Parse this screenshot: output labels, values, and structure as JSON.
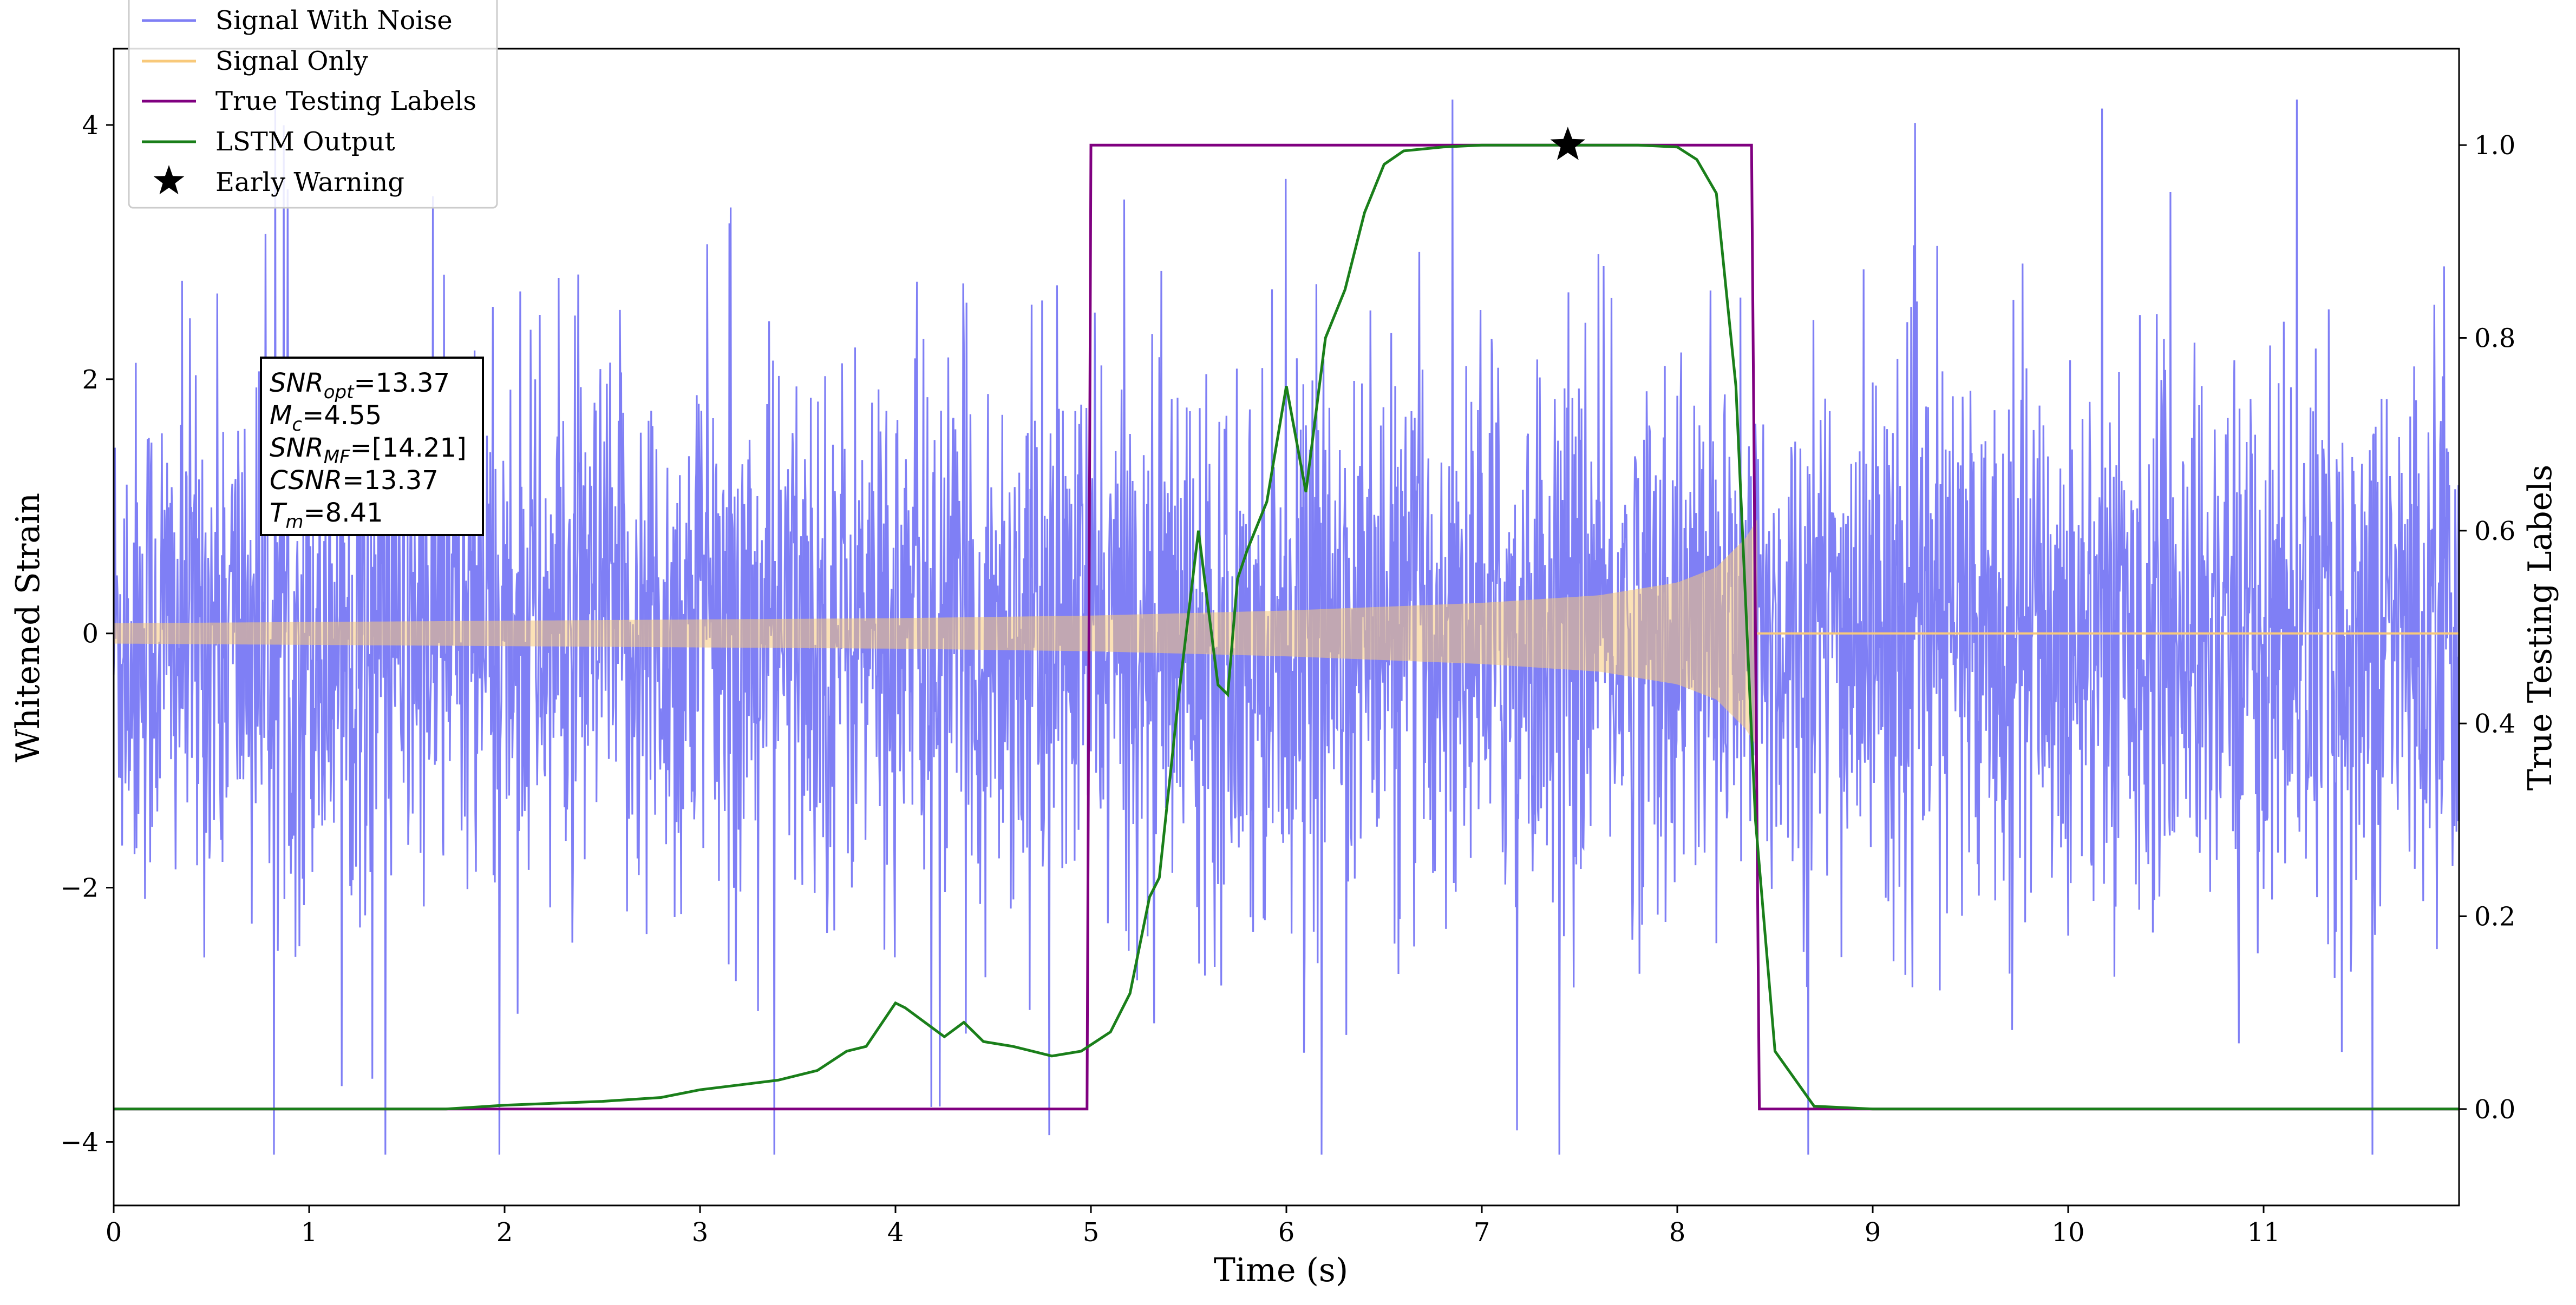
{
  "chart_data": {
    "type": "line",
    "xlabel": "Time (s)",
    "ylabel_left": "Whitened Strain",
    "ylabel_right": "True Testing Labels",
    "xlim": [
      0,
      12
    ],
    "ylim_left": [
      -4.5,
      4.6
    ],
    "ylim_right": [
      -0.1,
      1.1
    ],
    "x_ticks": [
      0,
      1,
      2,
      3,
      4,
      5,
      6,
      7,
      8,
      9,
      10,
      11
    ],
    "y_left_ticks": [
      -4,
      -2,
      0,
      2,
      4
    ],
    "y_left_tick_labels": [
      "−4",
      "−2",
      "0",
      "2",
      "4"
    ],
    "y_right_ticks": [
      0.0,
      0.2,
      0.4,
      0.6,
      0.8,
      1.0
    ],
    "y_right_tick_labels": [
      "0.0",
      "0.2",
      "0.4",
      "0.6",
      "0.8",
      "1.0"
    ],
    "grid": false,
    "legend_position": "top-left",
    "legend": [
      {
        "label": "Signal With Noise",
        "color": "#7f7ff5",
        "marker": "line"
      },
      {
        "label": "Signal Only",
        "color": "#f8c97a",
        "marker": "line"
      },
      {
        "label": "True Testing Labels",
        "color": "#800080",
        "marker": "line"
      },
      {
        "label": "LSTM Output",
        "color": "#1a7f1a",
        "marker": "line"
      },
      {
        "label": "Early Warning",
        "color": "#000000",
        "marker": "star"
      }
    ],
    "series": [
      {
        "name": "Signal With Noise",
        "axis": "left",
        "color": "#7f7ff5",
        "description": "whitened strain with Gaussian noise, spanning 0 to 12 s",
        "x_range": [
          0,
          12
        ],
        "typical_range": [
          -1.7,
          1.7
        ],
        "peak_max": 4.2,
        "peak_min": -4.1
      },
      {
        "name": "Signal Only",
        "axis": "left",
        "color": "#f8c97a",
        "description": "inspiral chirp with growing envelope, ends near t = 8.41",
        "envelope": {
          "t": [
            0,
            2,
            4,
            5,
            6,
            7,
            7.6,
            8.0,
            8.2,
            8.35,
            8.41
          ],
          "amp": [
            0.08,
            0.1,
            0.12,
            0.14,
            0.18,
            0.24,
            0.3,
            0.4,
            0.52,
            0.75,
            0.9
          ]
        },
        "after_merger_value": 0.0,
        "x_range": [
          0,
          12
        ]
      },
      {
        "name": "True Testing Labels",
        "axis": "right",
        "color": "#800080",
        "x": [
          0,
          4.98,
          5.0,
          8.38,
          8.42,
          12.0
        ],
        "y": [
          0,
          0,
          1,
          1,
          0,
          0
        ]
      },
      {
        "name": "LSTM Output",
        "axis": "right",
        "color": "#1a7f1a",
        "x": [
          0,
          1,
          1.7,
          2.0,
          2.5,
          2.8,
          3.0,
          3.2,
          3.4,
          3.6,
          3.75,
          3.85,
          4.0,
          4.05,
          4.15,
          4.25,
          4.35,
          4.45,
          4.6,
          4.8,
          4.95,
          5.1,
          5.2,
          5.3,
          5.35,
          5.45,
          5.55,
          5.65,
          5.7,
          5.75,
          5.8,
          5.9,
          6.0,
          6.1,
          6.2,
          6.3,
          6.4,
          6.5,
          6.6,
          6.8,
          7.0,
          7.44,
          7.8,
          8.0,
          8.1,
          8.2,
          8.3,
          8.4,
          8.5,
          8.7,
          9.0,
          10.0,
          12.0
        ],
        "y": [
          0,
          0,
          0,
          0.004,
          0.008,
          0.012,
          0.02,
          0.025,
          0.03,
          0.04,
          0.06,
          0.065,
          0.11,
          0.105,
          0.09,
          0.075,
          0.09,
          0.07,
          0.065,
          0.055,
          0.06,
          0.08,
          0.12,
          0.22,
          0.24,
          0.43,
          0.6,
          0.44,
          0.43,
          0.55,
          0.58,
          0.63,
          0.75,
          0.64,
          0.8,
          0.85,
          0.93,
          0.98,
          0.994,
          0.998,
          1.0,
          1.0,
          1.0,
          0.998,
          0.985,
          0.95,
          0.75,
          0.3,
          0.06,
          0.003,
          0.0,
          0.0,
          0.0
        ]
      },
      {
        "name": "Early Warning",
        "axis": "right",
        "color": "#000000",
        "marker": "star",
        "x": [
          7.44
        ],
        "y": [
          1.0
        ]
      }
    ],
    "annotation": {
      "lines": [
        {
          "var": "SNR",
          "sub": "opt",
          "val": "=13.37"
        },
        {
          "var": "M",
          "sub": "c",
          "val": "=4.55"
        },
        {
          "var": "SNR",
          "sub": "MF",
          "val": "=[14.21]"
        },
        {
          "var": "CSNR",
          "sub": "",
          "val": "=13.37"
        },
        {
          "var": "T",
          "sub": "m",
          "val": "=8.41"
        }
      ]
    }
  }
}
